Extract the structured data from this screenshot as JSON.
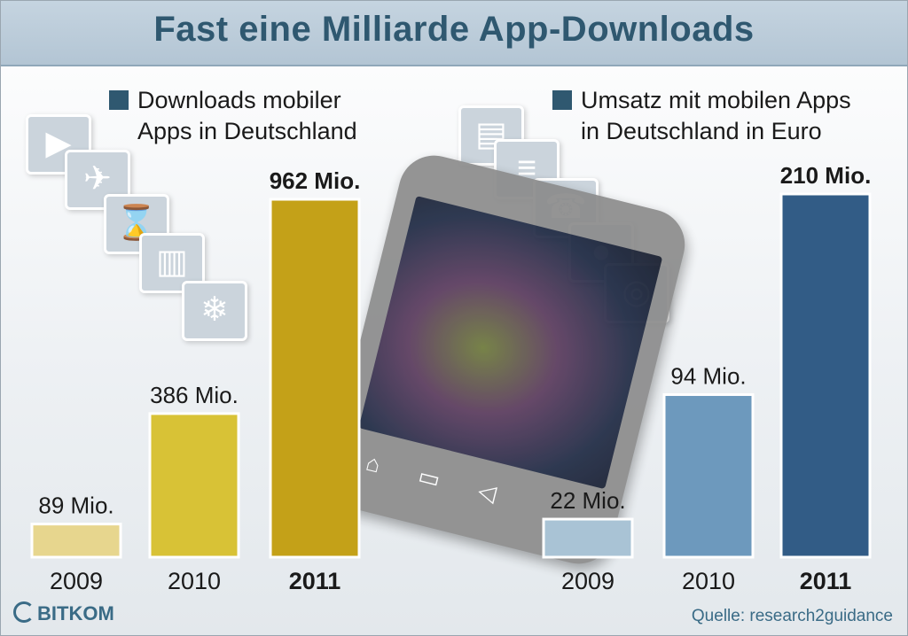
{
  "title": "Fast eine Milliarde App-Downloads",
  "legend_left": "Downloads mobiler\nApps in Deutschland",
  "legend_right": "Umsatz mit mobilen Apps\nin Deutschland in Euro",
  "source": "Quelle: research2guidance",
  "logo_text": "BITKOM",
  "colors": {
    "title": "#2f5870",
    "downloads": [
      "#e7d68e",
      "#d8c236",
      "#c4a118"
    ],
    "revenue": [
      "#a9c3d5",
      "#6d99bd",
      "#325c86"
    ]
  },
  "chart_data": [
    {
      "type": "bar",
      "title": "Downloads mobiler Apps in Deutschland",
      "categories": [
        "2009",
        "2010",
        "2011"
      ],
      "values": [
        89,
        386,
        962
      ],
      "value_labels": [
        "89 Mio.",
        "386 Mio.",
        "962 Mio."
      ],
      "unit": "Mio.",
      "highlight_category": "2011"
    },
    {
      "type": "bar",
      "title": "Umsatz mit mobilen Apps in Deutschland in Euro",
      "categories": [
        "2009",
        "2010",
        "2011"
      ],
      "values": [
        22,
        94,
        210
      ],
      "value_labels": [
        "22 Mio.",
        "94 Mio.",
        "210 Mio."
      ],
      "unit": "Mio.",
      "highlight_category": "2011"
    }
  ]
}
